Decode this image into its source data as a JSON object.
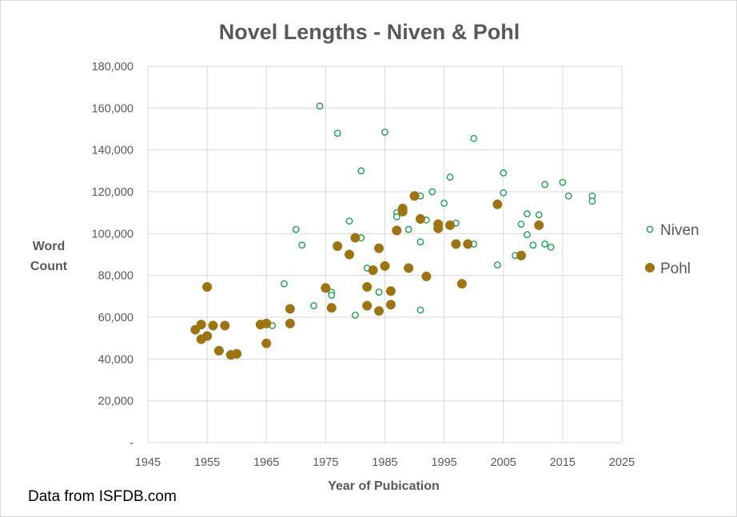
{
  "chart_data": {
    "type": "scatter",
    "title": "Novel Lengths - Niven & Pohl",
    "xlabel": "Year of Pubication",
    "ylabel_lines": [
      "Word",
      "Count"
    ],
    "xlim": [
      1945,
      2025
    ],
    "ylim": [
      0,
      180000
    ],
    "x_ticks": [
      1945,
      1955,
      1965,
      1975,
      1985,
      1995,
      2005,
      2015,
      2025
    ],
    "y_ticks": [
      0,
      20000,
      40000,
      60000,
      80000,
      100000,
      120000,
      140000,
      160000,
      180000
    ],
    "y_tick_labels": [
      "-",
      "20,000",
      "40,000",
      "60,000",
      "80,000",
      "100,000",
      "120,000",
      "140,000",
      "160,000",
      "180,000"
    ],
    "grid": true,
    "legend_position": "right",
    "colors": {
      "niven": "#1aa150",
      "pohl": "#9c7410",
      "grid": "#d9d9d9",
      "text": "#595959"
    },
    "series": [
      {
        "name": "Niven",
        "marker": "hollow-circle",
        "x": [
          1966,
          1968,
          1970,
          1971,
          1973,
          1974,
          1976,
          1976,
          1977,
          1979,
          1980,
          1981,
          1981,
          1982,
          1984,
          1985,
          1987,
          1987,
          1989,
          1991,
          1991,
          1991,
          1992,
          1993,
          1995,
          1996,
          1997,
          2000,
          2000,
          2004,
          2005,
          2005,
          2007,
          2008,
          2009,
          2009,
          2010,
          2011,
          2012,
          2012,
          2013,
          2015,
          2016,
          2020,
          2020
        ],
        "y": [
          56000,
          76000,
          102000,
          94500,
          65500,
          161000,
          72000,
          70500,
          148000,
          106000,
          61000,
          98000,
          130000,
          83500,
          72000,
          148500,
          110000,
          108000,
          102000,
          118000,
          96000,
          63500,
          106500,
          120000,
          114500,
          127000,
          105000,
          145500,
          95000,
          85000,
          129000,
          119500,
          89500,
          104500,
          109500,
          99500,
          94500,
          109000,
          95000,
          123500,
          93500,
          124500,
          118000,
          118000,
          115500
        ]
      },
      {
        "name": "Pohl",
        "marker": "filled-circle",
        "x": [
          1953,
          1954,
          1954,
          1955,
          1955,
          1956,
          1957,
          1958,
          1959,
          1960,
          1964,
          1965,
          1965,
          1969,
          1969,
          1975,
          1976,
          1977,
          1979,
          1980,
          1982,
          1982,
          1983,
          1984,
          1984,
          1985,
          1986,
          1986,
          1987,
          1988,
          1988,
          1989,
          1990,
          1991,
          1992,
          1994,
          1994,
          1996,
          1997,
          1998,
          1999,
          2004,
          2008,
          2011
        ],
        "y": [
          54000,
          56500,
          49500,
          51000,
          74500,
          56000,
          44000,
          56000,
          42000,
          42500,
          56500,
          57000,
          47500,
          64000,
          57000,
          74000,
          64500,
          94000,
          90000,
          98000,
          74500,
          65500,
          82500,
          93000,
          63000,
          84500,
          72500,
          66000,
          101500,
          112000,
          110500,
          83500,
          118000,
          107000,
          79500,
          104500,
          102500,
          104000,
          95000,
          76000,
          95000,
          114000,
          89500,
          104000
        ]
      }
    ]
  },
  "footer": {
    "source_text": "Data from ISFDB.com"
  }
}
